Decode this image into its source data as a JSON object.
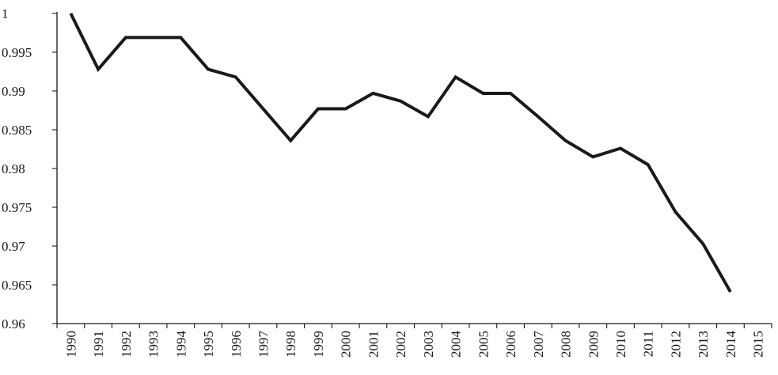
{
  "chart_data": {
    "type": "line",
    "title": "",
    "xlabel": "",
    "ylabel": "",
    "categories": [
      "1990",
      "1991",
      "1992",
      "1993",
      "1994",
      "1995",
      "1996",
      "1997",
      "1998",
      "1999",
      "2000",
      "2001",
      "2002",
      "2003",
      "2004",
      "2005",
      "2006",
      "2007",
      "2008",
      "2009",
      "2010",
      "2011",
      "2012",
      "2013",
      "2014",
      "2015"
    ],
    "series": [
      {
        "values": [
          1.0,
          0.9928,
          0.9969,
          0.9969,
          0.9969,
          0.9928,
          0.9918,
          0.9877,
          0.9836,
          0.9877,
          0.9877,
          0.9897,
          0.9887,
          0.9867,
          0.9918,
          0.9897,
          0.9897,
          0.9867,
          0.9836,
          0.9815,
          0.9826,
          0.9805,
          0.9744,
          0.9703,
          0.9641,
          null
        ]
      }
    ],
    "ylim": [
      0.96,
      1.0
    ],
    "yticks": [
      "0.96",
      "0.965",
      "0.97",
      "0.975",
      "0.98",
      "0.985",
      "0.99",
      "0.995",
      "1"
    ],
    "grid": false,
    "legend": "none",
    "line_color": "#1a1a1a"
  }
}
